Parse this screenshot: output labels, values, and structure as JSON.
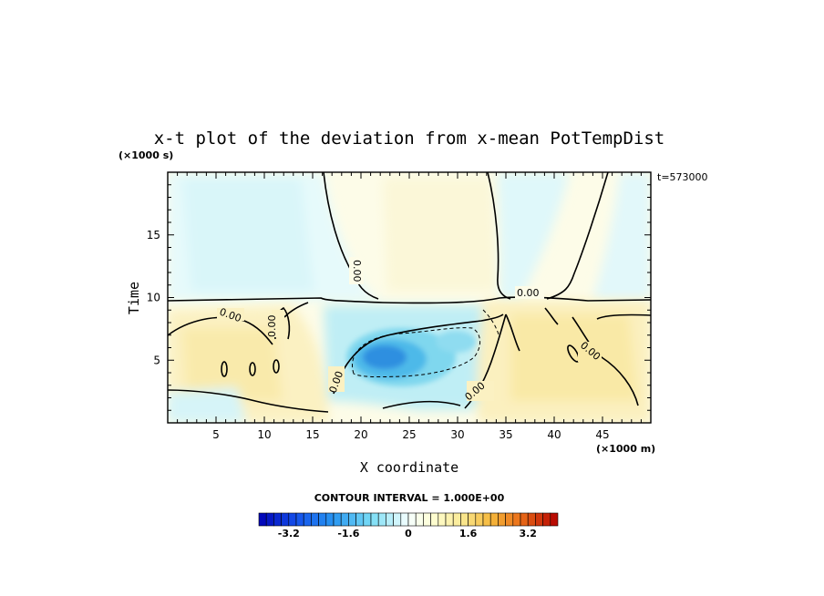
{
  "chart_data": {
    "type": "heatmap",
    "title": "x-t plot of the deviation from x-mean PotTempDist",
    "xlabel": "X coordinate",
    "ylabel": "Time",
    "x_units": "(×1000 m)",
    "y_units": "(×1000 s)",
    "time_stamp": "t=573000",
    "xlim": [
      0,
      50
    ],
    "ylim": [
      0,
      20
    ],
    "x_ticks": [
      5,
      10,
      15,
      20,
      25,
      30,
      35,
      40,
      45
    ],
    "y_ticks": [
      5,
      10,
      15
    ],
    "contour_interval_text": "CONTOUR INTERVAL = 1.000E+00",
    "contour_labels": [
      "0.00",
      "0.00",
      "0.00",
      "0.00",
      "0.00",
      "0.00",
      "0.00"
    ],
    "colorbar": {
      "min": -4.0,
      "max": 4.0,
      "step": 0.2,
      "tick_values": [
        -3.2,
        -1.6,
        0,
        1.6,
        3.2
      ],
      "tick_labels": [
        "-3.2",
        "-1.6",
        "0",
        "1.6",
        "3.2"
      ]
    },
    "grid": false,
    "field_features": [
      {
        "x": 23,
        "t": 5.0,
        "value": -2.6,
        "note": "cold anomaly core"
      },
      {
        "x": 8,
        "t": 5.0,
        "value": 0.6
      },
      {
        "x": 42,
        "t": 5.5,
        "value": 0.7
      },
      {
        "x": 9,
        "t": 16,
        "value": -0.5
      },
      {
        "x": 28,
        "t": 15,
        "value": 0.3
      },
      {
        "x": 46,
        "t": 15,
        "value": 0.2
      }
    ]
  },
  "colors": {
    "cold": "#0000b4",
    "neutral": "#ffffff",
    "warm": "#b40000"
  }
}
